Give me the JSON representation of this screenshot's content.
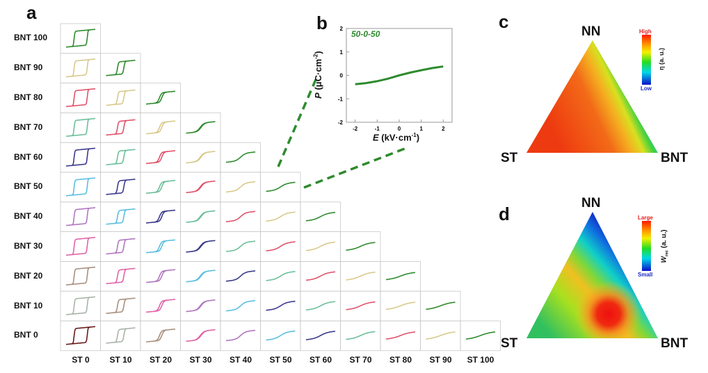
{
  "panels": {
    "a": "a",
    "b": "b",
    "c": "c",
    "d": "d"
  },
  "chart_data": [
    {
      "type": "grid-of-PE-loops",
      "panel": "a",
      "row_labels": [
        "BNT 100",
        "BNT 90",
        "BNT 80",
        "BNT 70",
        "BNT 60",
        "BNT 50",
        "BNT 40",
        "BNT 30",
        "BNT 20",
        "BNT 10",
        "BNT 0"
      ],
      "col_labels": [
        "ST 0",
        "ST 10",
        "ST 20",
        "ST 30",
        "ST 40",
        "ST 50",
        "ST 60",
        "ST 70",
        "ST 80",
        "ST 90",
        "ST 100"
      ],
      "diagonal_colors": [
        "#2e8b2e",
        "#d8c98a",
        "#e0536a",
        "#6cbf9a",
        "#3b3a8c",
        "#5bbfe0",
        "#b078c0",
        "#e065a8",
        "#a89080",
        "#a8b4a8",
        "#6a1a1a"
      ],
      "loop_type_by_ST": [
        "square",
        "pinched-wide",
        "slim",
        "slim",
        "slim",
        "linear",
        "linear",
        "linear",
        "linear",
        "linear",
        "linear"
      ]
    },
    {
      "type": "line",
      "panel": "b",
      "annotation": "50-0-50",
      "xlabel_var": "E",
      "xlabel_unit": " (kV·cm",
      "ylabel_var": "P",
      "ylabel_unit": " (μC·cm",
      "xlim": [
        -2.4,
        2.4
      ],
      "ylim": [
        -2,
        2
      ],
      "xticks": [
        "-2",
        "-1",
        "0",
        "1",
        "2"
      ],
      "yticks": [
        "-2",
        "-1",
        "0",
        "1",
        "2"
      ],
      "series": [
        {
          "name": "50-0-50",
          "color": "#2e8b2e",
          "x": [
            -2,
            -1.5,
            -1,
            -0.5,
            0,
            0.5,
            1,
            1.5,
            2
          ],
          "y": [
            -0.38,
            -0.33,
            -0.25,
            -0.14,
            0,
            0.12,
            0.22,
            0.31,
            0.38
          ]
        }
      ]
    },
    {
      "type": "ternary-heatmap",
      "panel": "c",
      "vertices": {
        "top": "NN",
        "left": "ST",
        "right": "BNT"
      },
      "colorbar": {
        "high": "High",
        "low": "Low",
        "label": "η (a. u.)"
      }
    },
    {
      "type": "ternary-heatmap",
      "panel": "d",
      "vertices": {
        "top": "NN",
        "left": "ST",
        "right": "BNT"
      },
      "colorbar": {
        "high": "Large",
        "low": "Small",
        "label": "W",
        "label_sub": "rec",
        "label_tail": " (a. u.)"
      }
    }
  ]
}
